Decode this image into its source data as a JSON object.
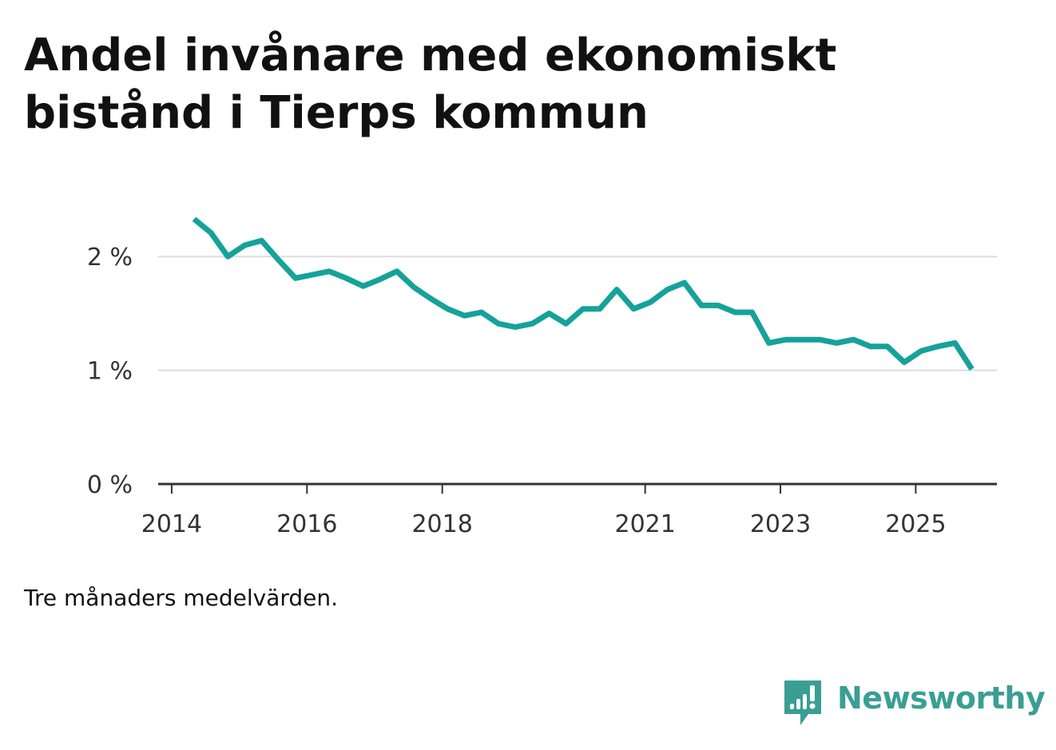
{
  "chart_data": {
    "type": "line",
    "title": "Andel invånare med ekonomiskt bistånd i Tierps kommun",
    "footnote": "Tre månaders medelvärden.",
    "xlabel": "",
    "ylabel": "",
    "ylim": [
      0,
      2.5
    ],
    "xlim": [
      2013.8,
      2026.2
    ],
    "grid": true,
    "y_ticks": [
      {
        "value": 0,
        "label": "0 %"
      },
      {
        "value": 1,
        "label": "1 %"
      },
      {
        "value": 2,
        "label": "2 %"
      }
    ],
    "x_ticks": [
      {
        "value": 2014,
        "label": "2014"
      },
      {
        "value": 2016,
        "label": "2016"
      },
      {
        "value": 2018,
        "label": "2018"
      },
      {
        "value": 2021,
        "label": "2021"
      },
      {
        "value": 2023,
        "label": "2023"
      },
      {
        "value": 2025,
        "label": "2025"
      }
    ],
    "series": [
      {
        "name": "Andel invånare med ekonomiskt bistånd",
        "color": "#15a29a",
        "x": [
          2014.33,
          2014.58,
          2014.83,
          2015.08,
          2015.33,
          2015.58,
          2015.83,
          2016.08,
          2016.33,
          2016.58,
          2016.83,
          2017.08,
          2017.33,
          2017.58,
          2017.83,
          2018.08,
          2018.33,
          2018.58,
          2018.83,
          2019.08,
          2019.33,
          2019.58,
          2019.83,
          2020.08,
          2020.33,
          2020.58,
          2020.83,
          2021.08,
          2021.33,
          2021.58,
          2021.83,
          2022.08,
          2022.33,
          2022.58,
          2022.83,
          2023.08,
          2023.33,
          2023.58,
          2023.83,
          2024.08,
          2024.33,
          2024.58,
          2024.83,
          2025.08,
          2025.33,
          2025.58,
          2025.83
        ],
        "values": [
          2.33,
          2.21,
          2.0,
          2.1,
          2.14,
          1.97,
          1.81,
          1.84,
          1.87,
          1.81,
          1.74,
          1.8,
          1.87,
          1.73,
          1.63,
          1.54,
          1.48,
          1.51,
          1.41,
          1.38,
          1.41,
          1.5,
          1.41,
          1.54,
          1.54,
          1.71,
          1.54,
          1.6,
          1.71,
          1.77,
          1.57,
          1.57,
          1.51,
          1.51,
          1.24,
          1.27,
          1.27,
          1.27,
          1.24,
          1.27,
          1.21,
          1.21,
          1.07,
          1.17,
          1.21,
          1.24,
          1.01
        ]
      }
    ]
  },
  "brand": {
    "name": "Newsworthy",
    "logo_icon": "newsworthy-chart-bubble-icon",
    "color": "#3a9e95"
  }
}
